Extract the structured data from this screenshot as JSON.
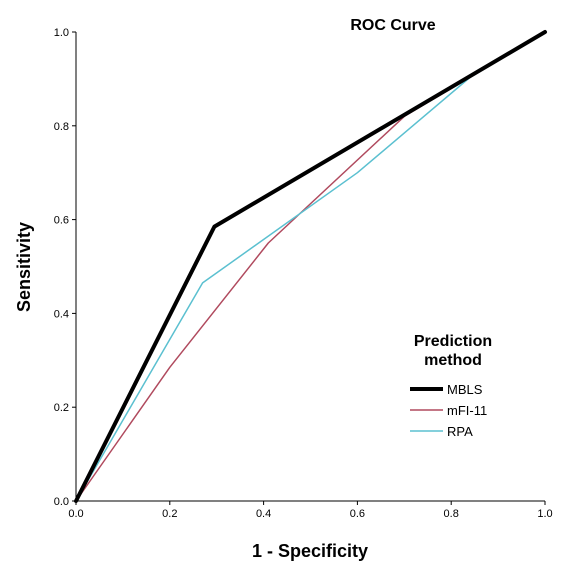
{
  "chart_data": {
    "type": "line",
    "title": "ROC Curve",
    "xlabel": "1 - Specificity",
    "ylabel": "Sensitivity",
    "xlim": [
      0,
      1
    ],
    "ylim": [
      0,
      1
    ],
    "x_ticks": [
      "0.0",
      "0.2",
      "0.4",
      "0.6",
      "0.8",
      "1.0"
    ],
    "y_ticks": [
      "0.0",
      "0.2",
      "0.4",
      "0.6",
      "0.8",
      "1.0"
    ],
    "grid": false,
    "legend": {
      "title_line1": "Prediction",
      "title_line2": "method",
      "placement": "right-middle"
    },
    "series": [
      {
        "name": "MBLS",
        "color": "#000000",
        "style": "thick",
        "points": [
          [
            0,
            0
          ],
          [
            0.295,
            0.585
          ],
          [
            1,
            1
          ]
        ]
      },
      {
        "name": "mFI-11",
        "color": "#b04a5e",
        "style": "thin",
        "points": [
          [
            0,
            0
          ],
          [
            0.2,
            0.285
          ],
          [
            0.41,
            0.55
          ],
          [
            0.7,
            0.82
          ],
          [
            1,
            1
          ]
        ]
      },
      {
        "name": "RPA",
        "color": "#5bc0d0",
        "style": "thin",
        "points": [
          [
            0,
            0
          ],
          [
            0.27,
            0.465
          ],
          [
            0.6,
            0.7
          ],
          [
            0.86,
            0.92
          ],
          [
            1,
            1
          ]
        ]
      }
    ]
  }
}
